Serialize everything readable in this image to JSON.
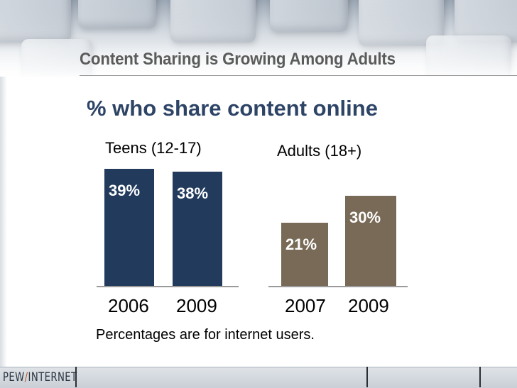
{
  "slide": {
    "title": "Content Sharing is Growing Among Adults",
    "footnote": "Percentages are for internet users.",
    "logo_left": "PEW",
    "logo_slash": "/",
    "logo_right": "INTERNET"
  },
  "chart_data": {
    "type": "bar",
    "title": "% who share content online",
    "xlabel": "",
    "ylabel": "",
    "ylim": [
      0,
      45
    ],
    "groups": [
      {
        "name": "Teens (12-17)",
        "color": "#223a5c",
        "categories": [
          "2006",
          "2009"
        ],
        "values": [
          39,
          38
        ],
        "labels": [
          "39%",
          "38%"
        ]
      },
      {
        "name": "Adults (18+)",
        "color": "#786a57",
        "categories": [
          "2007",
          "2009"
        ],
        "values": [
          21,
          30
        ],
        "labels": [
          "21%",
          "30%"
        ]
      }
    ]
  }
}
